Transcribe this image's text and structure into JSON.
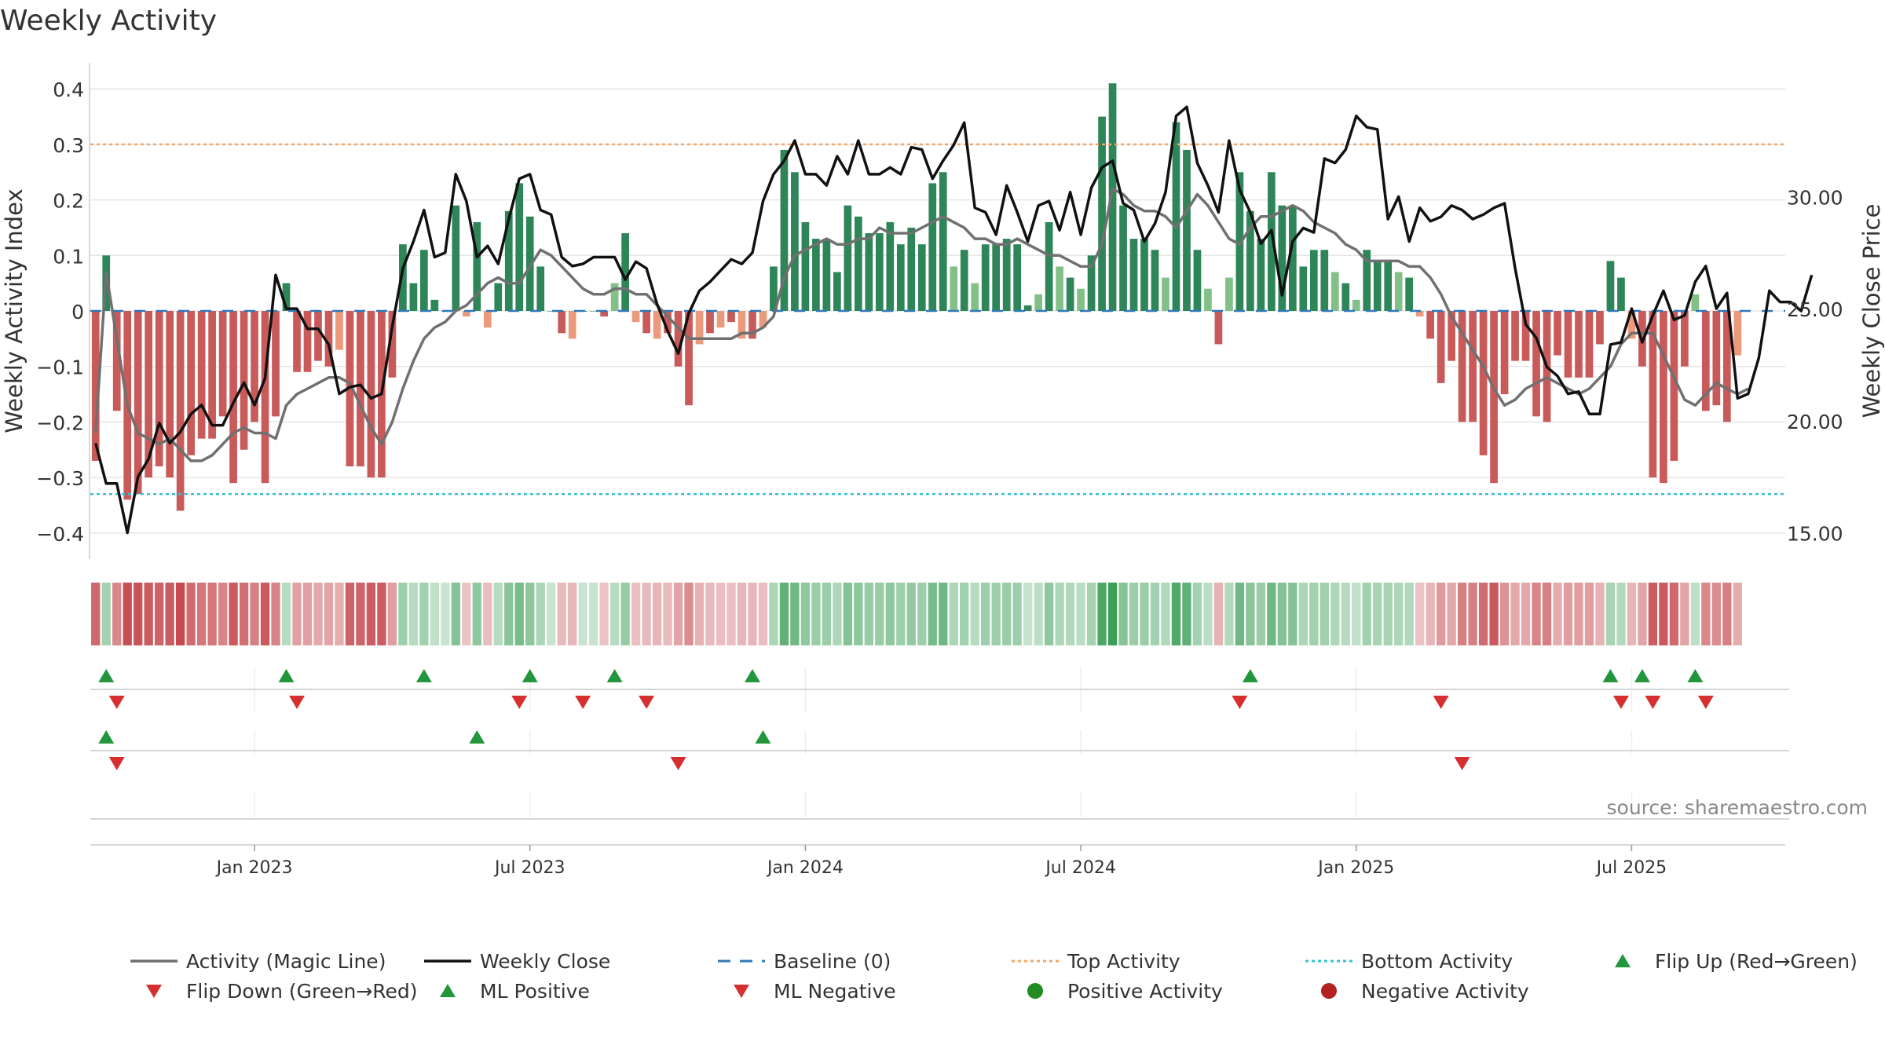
{
  "chart_data": {
    "type": "bar",
    "title": "Weekly Activity",
    "left_axis": {
      "label": "Weekly Activity Index",
      "range": [
        -0.43,
        0.43
      ],
      "ticks": [
        {
          "value": 0.4,
          "label": "0.4"
        },
        {
          "value": 0.3,
          "label": "0.3"
        },
        {
          "value": 0.2,
          "label": "0.2"
        },
        {
          "value": 0.1,
          "label": "0.1"
        },
        {
          "value": 0.0,
          "label": "0"
        },
        {
          "value": -0.1,
          "label": "−0.1"
        },
        {
          "value": -0.2,
          "label": "−0.2"
        },
        {
          "value": -0.3,
          "label": "−0.3"
        },
        {
          "value": -0.4,
          "label": "−0.4"
        }
      ]
    },
    "right_axis": {
      "label": "Weekly Close Price",
      "range": [
        14.25,
        35.55
      ],
      "ticks": [
        {
          "value": 30.0,
          "label": "30.00"
        },
        {
          "value": 25.0,
          "label": "25.00"
        },
        {
          "value": 20.0,
          "label": "20.00"
        },
        {
          "value": 15.0,
          "label": "15.00"
        }
      ]
    },
    "x_axis": {
      "start": "2022-09-26",
      "week_count": 160,
      "ticks": [
        {
          "label": "Jan 2023",
          "week": 15
        },
        {
          "label": "Jul 2023",
          "week": 41
        },
        {
          "label": "Jan 2024",
          "week": 67
        },
        {
          "label": "Jul 2024",
          "week": 93
        },
        {
          "label": "Jan 2025",
          "week": 119
        },
        {
          "label": "Jul 2025",
          "week": 145
        }
      ]
    },
    "thresholds": {
      "top": 0.3,
      "bottom": -0.33,
      "baseline": 0.0
    },
    "weekly_activity": [
      -0.27,
      0.1,
      -0.18,
      -0.34,
      -0.33,
      -0.3,
      -0.28,
      -0.3,
      -0.36,
      -0.26,
      -0.23,
      -0.23,
      -0.19,
      -0.31,
      -0.25,
      -0.2,
      -0.31,
      -0.19,
      0.05,
      -0.11,
      -0.11,
      -0.09,
      -0.1,
      -0.07,
      -0.28,
      -0.28,
      -0.3,
      -0.3,
      -0.12,
      0.12,
      0.05,
      0.11,
      0.02,
      0.0,
      0.19,
      -0.01,
      0.16,
      -0.03,
      0.05,
      0.18,
      0.23,
      0.17,
      0.08,
      0.0,
      -0.04,
      -0.05,
      0.0,
      0.0,
      -0.01,
      0.05,
      0.14,
      -0.02,
      -0.04,
      -0.05,
      -0.04,
      -0.1,
      -0.17,
      -0.06,
      -0.04,
      -0.03,
      -0.02,
      -0.05,
      -0.05,
      -0.03,
      0.08,
      0.29,
      0.25,
      0.16,
      0.13,
      0.13,
      0.07,
      0.19,
      0.17,
      0.14,
      0.14,
      0.16,
      0.12,
      0.15,
      0.12,
      0.23,
      0.25,
      0.08,
      0.11,
      0.05,
      0.12,
      0.12,
      0.13,
      0.12,
      0.01,
      0.03,
      0.16,
      0.08,
      0.06,
      0.04,
      0.1,
      0.35,
      0.41,
      0.19,
      0.13,
      0.13,
      0.11,
      0.06,
      0.34,
      0.29,
      0.11,
      0.04,
      -0.06,
      0.06,
      0.25,
      0.18,
      0.13,
      0.25,
      0.19,
      0.19,
      0.08,
      0.11,
      0.11,
      0.07,
      0.05,
      0.02,
      0.11,
      0.09,
      0.09,
      0.07,
      0.06,
      -0.01,
      -0.05,
      -0.13,
      -0.09,
      -0.2,
      -0.2,
      -0.26,
      -0.31,
      -0.15,
      -0.09,
      -0.09,
      -0.19,
      -0.2,
      -0.08,
      -0.12,
      -0.12,
      -0.12,
      -0.06,
      0.09,
      0.06,
      -0.05,
      -0.1,
      -0.3,
      -0.31,
      -0.27,
      -0.1,
      0.03,
      -0.18,
      -0.17,
      -0.2,
      -0.08
    ],
    "magic_line": [
      -0.22,
      0.07,
      -0.05,
      -0.17,
      -0.22,
      -0.23,
      -0.24,
      -0.23,
      -0.25,
      -0.27,
      -0.27,
      -0.26,
      -0.24,
      -0.22,
      -0.21,
      -0.22,
      -0.22,
      -0.23,
      -0.17,
      -0.15,
      -0.14,
      -0.13,
      -0.12,
      -0.12,
      -0.13,
      -0.17,
      -0.21,
      -0.24,
      -0.2,
      -0.14,
      -0.09,
      -0.05,
      -0.03,
      -0.02,
      0.0,
      0.01,
      0.03,
      0.05,
      0.06,
      0.05,
      0.05,
      0.08,
      0.11,
      0.1,
      0.08,
      0.06,
      0.04,
      0.03,
      0.03,
      0.04,
      0.04,
      0.03,
      0.03,
      0.01,
      -0.01,
      -0.03,
      -0.05,
      -0.05,
      -0.05,
      -0.05,
      -0.05,
      -0.04,
      -0.04,
      -0.03,
      -0.01,
      0.06,
      0.1,
      0.11,
      0.12,
      0.13,
      0.12,
      0.12,
      0.13,
      0.13,
      0.15,
      0.14,
      0.14,
      0.14,
      0.15,
      0.16,
      0.17,
      0.16,
      0.15,
      0.13,
      0.13,
      0.12,
      0.12,
      0.13,
      0.12,
      0.11,
      0.1,
      0.1,
      0.09,
      0.08,
      0.08,
      0.12,
      0.22,
      0.21,
      0.19,
      0.18,
      0.18,
      0.17,
      0.15,
      0.18,
      0.21,
      0.19,
      0.16,
      0.13,
      0.12,
      0.15,
      0.17,
      0.17,
      0.18,
      0.19,
      0.18,
      0.16,
      0.15,
      0.14,
      0.12,
      0.11,
      0.09,
      0.09,
      0.09,
      0.09,
      0.08,
      0.08,
      0.06,
      0.03,
      -0.01,
      -0.04,
      -0.07,
      -0.1,
      -0.14,
      -0.17,
      -0.16,
      -0.14,
      -0.13,
      -0.12,
      -0.13,
      -0.14,
      -0.15,
      -0.14,
      -0.12,
      -0.1,
      -0.06,
      -0.04,
      -0.04,
      -0.04,
      -0.08,
      -0.12,
      -0.16,
      -0.17,
      -0.15,
      -0.13,
      -0.14,
      -0.15,
      -0.14
    ],
    "weekly_close": [
      19.0,
      17.2,
      17.2,
      15.0,
      17.5,
      18.3,
      19.9,
      19.0,
      19.5,
      20.3,
      20.7,
      19.8,
      19.8,
      20.8,
      21.7,
      20.7,
      21.9,
      26.5,
      25.0,
      25.0,
      24.1,
      24.1,
      23.4,
      21.2,
      21.5,
      21.6,
      21.0,
      21.2,
      24.2,
      26.8,
      28.0,
      29.4,
      27.3,
      27.5,
      31.0,
      29.8,
      27.3,
      27.8,
      27.0,
      29.0,
      30.8,
      31.0,
      29.4,
      29.2,
      27.3,
      26.9,
      27.0,
      27.3,
      27.3,
      27.3,
      26.3,
      27.1,
      26.8,
      25.2,
      24.0,
      23.0,
      24.8,
      25.8,
      26.2,
      26.7,
      27.2,
      27.0,
      27.5,
      29.8,
      31.0,
      31.6,
      32.5,
      31.0,
      31.0,
      30.5,
      31.8,
      31.0,
      32.5,
      31.0,
      31.0,
      31.3,
      31.0,
      32.2,
      32.1,
      30.8,
      31.6,
      32.3,
      33.3,
      29.5,
      29.3,
      28.3,
      30.5,
      29.3,
      28.0,
      29.6,
      29.8,
      28.5,
      30.2,
      28.3,
      30.4,
      31.3,
      31.6,
      29.7,
      29.4,
      28.0,
      28.8,
      30.2,
      33.6,
      34.0,
      31.5,
      30.5,
      29.3,
      32.5,
      30.3,
      29.3,
      27.9,
      28.5,
      25.6,
      28.0,
      28.6,
      28.4,
      31.7,
      31.5,
      32.1,
      33.6,
      33.1,
      33.0,
      29.0,
      30.0,
      28.0,
      29.5,
      28.9,
      29.1,
      29.6,
      29.4,
      29.0,
      29.2,
      29.5,
      29.7,
      26.8,
      24.3,
      23.7,
      22.4,
      22.0,
      21.2,
      21.3,
      20.3,
      20.3,
      23.4,
      23.5,
      25.0,
      23.5,
      24.7,
      25.8,
      24.5,
      24.7,
      26.2,
      26.9,
      25.0,
      25.7,
      21.0,
      21.2,
      22.8,
      25.8,
      25.3,
      25.3,
      24.9,
      26.5
    ],
    "signals": {
      "flip_up_weeks": [
        1,
        18,
        31,
        41,
        49,
        62,
        109,
        143,
        146,
        151
      ],
      "flip_down_weeks": [
        2,
        19,
        40,
        46,
        52,
        108,
        127,
        144,
        147,
        152
      ],
      "ml_positive_weeks": [
        1,
        36,
        63
      ],
      "ml_negative_weeks": [
        2,
        55,
        129
      ]
    },
    "annotation": "source: sharemaestro.com",
    "legend": {
      "placement": "bottom",
      "entries": [
        {
          "label": "Activity (Magic Line)",
          "symbol": "line",
          "color": "#707070"
        },
        {
          "label": "Weekly Close",
          "symbol": "line",
          "color": "#111111"
        },
        {
          "label": "Baseline (0)",
          "symbol": "dash",
          "color": "#2f78b8"
        },
        {
          "label": "Top Activity",
          "symbol": "dot-line",
          "color": "#f2a66a"
        },
        {
          "label": "Bottom Activity",
          "symbol": "dot-line",
          "color": "#35c0d8"
        },
        {
          "label": "Flip Up (Red→Green)",
          "symbol": "triangle-up",
          "color": "#22963c"
        },
        {
          "label": "Flip Down (Green→Red)",
          "symbol": "triangle-down",
          "color": "#d62f2f"
        },
        {
          "label": "ML Positive",
          "symbol": "triangle-up",
          "color": "#22963c"
        },
        {
          "label": "ML Negative",
          "symbol": "triangle-down",
          "color": "#d62f2f"
        },
        {
          "label": "Positive Activity",
          "symbol": "circle",
          "color": "#228b22"
        },
        {
          "label": "Negative Activity",
          "symbol": "circle",
          "color": "#b22222"
        }
      ]
    },
    "colors": {
      "pos_strong": "#2e8558",
      "pos_weak": "#82c087",
      "neg_strong": "#c95a5a",
      "neg_weak": "#eb9a7c",
      "grid": "#e6e6e6"
    }
  }
}
